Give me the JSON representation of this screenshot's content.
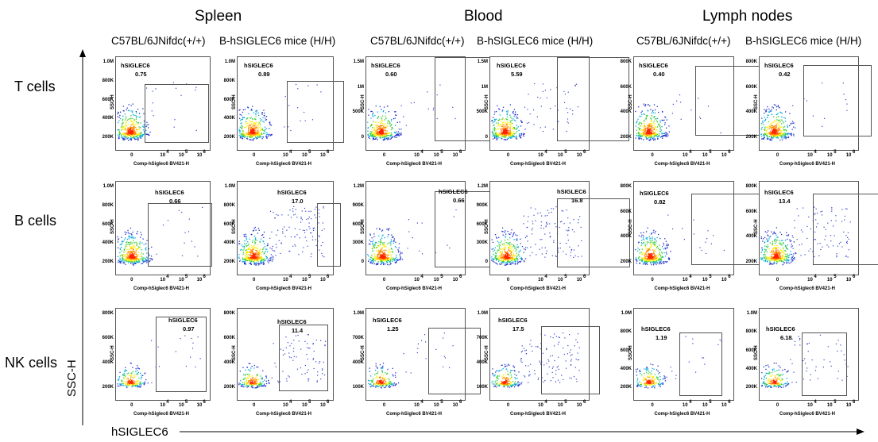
{
  "sections": [
    {
      "title": "Spleen",
      "columns": [
        "C57BL/6JNifdc(+/+)",
        "B-hSIGLEC6 mice (H/H)"
      ]
    },
    {
      "title": "Blood",
      "columns": [
        "C57BL/6JNifdc(+/+)",
        "B-hSIGLEC6 mice (H/H)"
      ]
    },
    {
      "title": "Lymph nodes",
      "columns": [
        "C57BL/6JNifdc(+/+)",
        "B-hSIGLEC6 mice (H/H)"
      ]
    }
  ],
  "rows": [
    "T cells",
    "B cells",
    "NK cells"
  ],
  "axis": {
    "y_label": "SSC-H",
    "x_label": "hSIGLEC6"
  },
  "plot_common": {
    "gate_name": "hSIGLEC6",
    "x_axis_label": "Comp-hSiglec6 BV421-H",
    "y_axis_label": "SSC-H",
    "x_ticks": [
      "0",
      "10",
      "4",
      "10",
      "5",
      "10",
      "6"
    ]
  },
  "panels": [
    {
      "row": 0,
      "col": 0,
      "pct": "0.75",
      "yticks": [
        "1.0M",
        "800K",
        "600K",
        "400K",
        "200K"
      ]
    },
    {
      "row": 0,
      "col": 1,
      "pct": "0.89",
      "yticks": [
        "1.0M",
        "800K",
        "600K",
        "400K",
        "200K"
      ]
    },
    {
      "row": 0,
      "col": 2,
      "pct": "0.60",
      "yticks": [
        "1.5M",
        "1M",
        "500K",
        "0"
      ]
    },
    {
      "row": 0,
      "col": 3,
      "pct": "5.59",
      "yticks": [
        "1.5M",
        "1M",
        "500K",
        "0"
      ]
    },
    {
      "row": 0,
      "col": 4,
      "pct": "0.40",
      "yticks": [
        "800K",
        "600K",
        "400K",
        "200K"
      ]
    },
    {
      "row": 0,
      "col": 5,
      "pct": "0.42",
      "yticks": [
        "800K",
        "600K",
        "400K",
        "200K"
      ]
    },
    {
      "row": 1,
      "col": 0,
      "pct": "0.66",
      "yticks": [
        "1.0M",
        "800K",
        "600K",
        "400K",
        "200K"
      ]
    },
    {
      "row": 1,
      "col": 1,
      "pct": "17.0",
      "yticks": [
        "1.0M",
        "800K",
        "600K",
        "400K",
        "200K"
      ]
    },
    {
      "row": 1,
      "col": 2,
      "pct": "0.66",
      "yticks": [
        "1.2M",
        "900K",
        "600K",
        "300K",
        "0"
      ]
    },
    {
      "row": 1,
      "col": 3,
      "pct": "16.8",
      "yticks": [
        "1.2M",
        "900K",
        "600K",
        "300K",
        "0"
      ]
    },
    {
      "row": 1,
      "col": 4,
      "pct": "0.82",
      "yticks": [
        "800K",
        "600K",
        "400K",
        "200K"
      ]
    },
    {
      "row": 1,
      "col": 5,
      "pct": "13.4",
      "yticks": [
        "800K",
        "600K",
        "400K",
        "200K"
      ]
    },
    {
      "row": 2,
      "col": 0,
      "pct": "0.97",
      "yticks": [
        "800K",
        "600K",
        "400K",
        "200K"
      ]
    },
    {
      "row": 2,
      "col": 1,
      "pct": "11.4",
      "yticks": [
        "800K",
        "600K",
        "400K",
        "200K"
      ]
    },
    {
      "row": 2,
      "col": 2,
      "pct": "1.25",
      "yticks": [
        "1.0M",
        "700K",
        "400K",
        "100K"
      ]
    },
    {
      "row": 2,
      "col": 3,
      "pct": "17.5",
      "yticks": [
        "1.0M",
        "700K",
        "400K",
        "100K"
      ]
    },
    {
      "row": 2,
      "col": 4,
      "pct": "1.19",
      "yticks": [
        "1.0M",
        "800K",
        "600K",
        "400K",
        "200K"
      ]
    },
    {
      "row": 2,
      "col": 5,
      "pct": "6.18",
      "yticks": [
        "1.0M",
        "800K",
        "600K",
        "400K",
        "200K"
      ]
    }
  ]
}
